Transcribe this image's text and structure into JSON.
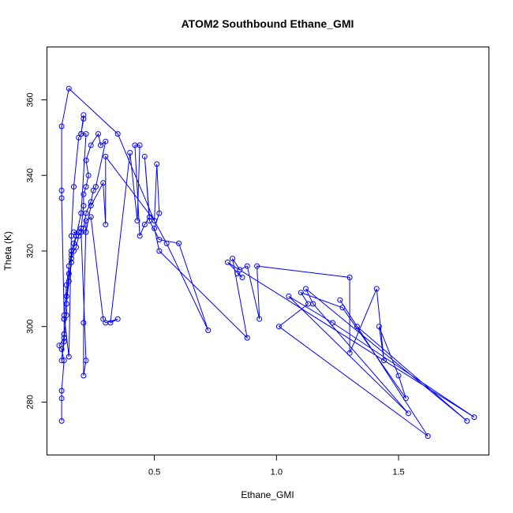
{
  "chart_data": {
    "type": "line",
    "title": "ATOM2 Southbound Ethane_GMI",
    "xlabel": "Ethane_GMI",
    "ylabel": "Theta (K)",
    "xlim": [
      0.06,
      1.87
    ],
    "ylim": [
      266,
      374
    ],
    "x_ticks": [
      0.5,
      1.0,
      1.5
    ],
    "x_tick_labels": [
      "0.5",
      "1.0",
      "1.5"
    ],
    "y_ticks": [
      280,
      300,
      320,
      340,
      360
    ],
    "y_tick_labels": [
      "280",
      "300",
      "320",
      "340",
      "360"
    ],
    "grid": false,
    "markers": "open-circle",
    "colors": {
      "series": "#0000ff",
      "axes": "#000000"
    },
    "series": [
      {
        "points": [
          [
            0.12,
            275
          ],
          [
            0.12,
            281
          ],
          [
            0.12,
            283
          ],
          [
            0.13,
            291
          ],
          [
            0.12,
            294
          ],
          [
            0.11,
            295
          ],
          [
            0.13,
            297
          ],
          [
            0.13,
            298
          ],
          [
            0.13,
            302
          ],
          [
            0.14,
            303
          ],
          [
            0.14,
            308
          ],
          [
            0.15,
            314
          ],
          [
            0.16,
            317
          ],
          [
            0.16,
            320
          ],
          [
            0.17,
            322
          ],
          [
            0.18,
            324
          ],
          [
            0.17,
            325
          ],
          [
            0.19,
            325
          ],
          [
            0.2,
            326
          ],
          [
            0.21,
            332
          ],
          [
            0.21,
            335
          ],
          [
            0.22,
            337
          ],
          [
            0.23,
            340
          ],
          [
            0.22,
            344
          ],
          [
            0.24,
            348
          ],
          [
            0.27,
            351
          ],
          [
            0.28,
            348
          ],
          [
            0.3,
            349
          ],
          [
            0.26,
            337
          ],
          [
            0.25,
            336
          ],
          [
            0.24,
            333
          ],
          [
            0.22,
            330
          ],
          [
            0.21,
            326
          ],
          [
            0.19,
            324
          ],
          [
            0.18,
            321
          ],
          [
            0.17,
            320
          ],
          [
            0.16,
            319
          ],
          [
            0.15,
            316
          ],
          [
            0.14,
            311
          ],
          [
            0.13,
            302
          ],
          [
            0.13,
            298
          ],
          [
            0.12,
            291
          ],
          [
            0.13,
            296
          ],
          [
            0.14,
            306
          ],
          [
            0.15,
            312
          ],
          [
            0.16,
            318
          ],
          [
            0.18,
            324
          ],
          [
            0.2,
            330
          ],
          [
            0.22,
            351
          ],
          [
            0.2,
            351
          ],
          [
            0.21,
            355
          ],
          [
            0.21,
            356
          ],
          [
            0.2,
            351
          ],
          [
            0.19,
            350
          ],
          [
            0.17,
            337
          ],
          [
            0.16,
            324
          ],
          [
            0.15,
            292
          ],
          [
            0.13,
            303
          ],
          [
            0.12,
            334
          ],
          [
            0.12,
            336
          ],
          [
            0.12,
            353
          ],
          [
            0.15,
            363
          ],
          [
            0.35,
            351
          ],
          [
            0.5,
            328
          ],
          [
            0.55,
            322
          ],
          [
            0.72,
            299
          ],
          [
            0.6,
            322
          ],
          [
            0.52,
            323
          ],
          [
            0.48,
            328
          ],
          [
            0.46,
            345
          ],
          [
            0.48,
            329
          ],
          [
            0.46,
            327
          ],
          [
            0.44,
            324
          ],
          [
            0.42,
            348
          ],
          [
            0.44,
            348
          ],
          [
            0.43,
            328
          ],
          [
            0.4,
            346
          ],
          [
            0.32,
            301
          ],
          [
            0.35,
            302
          ],
          [
            0.3,
            301
          ],
          [
            0.29,
            302
          ],
          [
            0.24,
            329
          ],
          [
            0.22,
            328
          ],
          [
            0.21,
            301
          ],
          [
            0.21,
            287
          ],
          [
            0.22,
            291
          ],
          [
            0.2,
            325
          ],
          [
            0.22,
            325
          ],
          [
            0.24,
            332
          ],
          [
            0.29,
            338
          ],
          [
            0.3,
            327
          ],
          [
            0.3,
            345
          ],
          [
            0.5,
            328
          ],
          [
            0.51,
            343
          ],
          [
            0.52,
            330
          ],
          [
            0.5,
            326
          ],
          [
            0.52,
            320
          ],
          [
            0.88,
            297
          ],
          [
            0.82,
            318
          ],
          [
            0.85,
            315
          ],
          [
            0.88,
            316
          ],
          [
            0.93,
            302
          ],
          [
            0.92,
            316
          ],
          [
            1.3,
            313
          ],
          [
            1.3,
            293
          ],
          [
            1.41,
            310
          ],
          [
            1.44,
            291
          ],
          [
            1.42,
            300
          ],
          [
            1.5,
            287
          ],
          [
            1.53,
            281
          ],
          [
            1.27,
            305
          ],
          [
            1.1,
            309
          ],
          [
            1.13,
            306
          ],
          [
            1.01,
            300
          ],
          [
            1.62,
            271
          ],
          [
            1.26,
            307
          ],
          [
            1.33,
            300
          ],
          [
            1.78,
            275
          ],
          [
            1.12,
            310
          ],
          [
            1.15,
            306
          ],
          [
            1.54,
            277
          ],
          [
            1.05,
            308
          ],
          [
            1.23,
            301
          ],
          [
            1.81,
            276
          ],
          [
            0.8,
            317
          ],
          [
            0.86,
            313
          ],
          [
            0.84,
            314
          ]
        ]
      }
    ]
  }
}
